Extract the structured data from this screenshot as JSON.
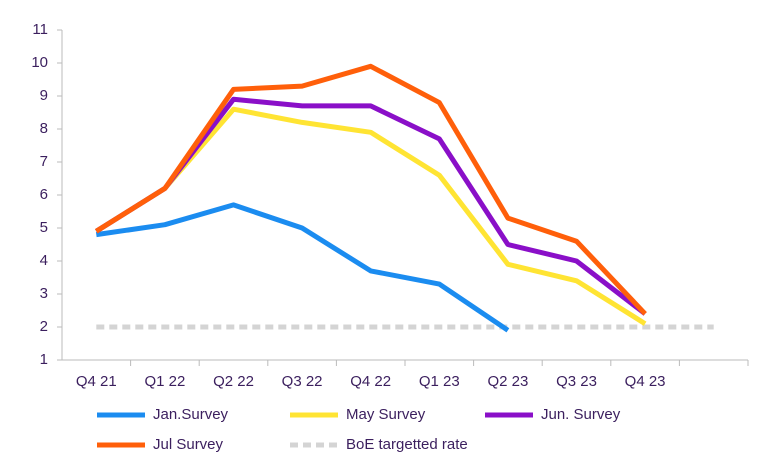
{
  "chart_data": {
    "type": "line",
    "categories": [
      "Q4 21",
      "Q1 22",
      "Q2 22",
      "Q3 22",
      "Q4 22",
      "Q1 23",
      "Q2 23",
      "Q3 23",
      "Q4 23",
      null
    ],
    "series": [
      {
        "name": "Jan.Survey",
        "color": "#1b8cf0",
        "values": [
          4.8,
          5.1,
          5.7,
          5.0,
          3.7,
          3.3,
          1.9,
          null,
          null,
          null
        ]
      },
      {
        "name": "May Survey",
        "color": "#ffe433",
        "values": [
          4.9,
          6.2,
          8.6,
          8.2,
          7.9,
          6.6,
          3.9,
          3.4,
          2.1,
          null
        ]
      },
      {
        "name": "Jun. Survey",
        "color": "#8a0fc8",
        "values": [
          4.9,
          6.2,
          8.9,
          8.7,
          8.7,
          7.7,
          4.5,
          4.0,
          2.4,
          null
        ]
      },
      {
        "name": "Jul Survey",
        "color": "#ff5f0a",
        "values": [
          4.9,
          6.2,
          9.2,
          9.3,
          9.9,
          8.8,
          5.3,
          4.6,
          2.4,
          null
        ]
      },
      {
        "name": "BoE targetted rate",
        "color": "#d4d4d4",
        "dashed": true,
        "values": [
          2,
          2,
          2,
          2,
          2,
          2,
          2,
          2,
          2,
          2
        ]
      }
    ],
    "ylim": [
      1,
      11
    ],
    "yticks": [
      1,
      2,
      3,
      4,
      5,
      6,
      7,
      8,
      9,
      10,
      11
    ],
    "grid": false
  }
}
